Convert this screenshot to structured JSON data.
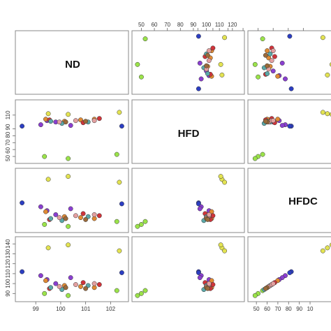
{
  "chart_data": {
    "type": "scatter",
    "variables": [
      "ND",
      "HFD",
      "HFDC"
    ],
    "axis_ticks": {
      "ND": [
        "99",
        "100",
        "101",
        "102"
      ],
      "HFD": [
        "50",
        "60",
        "70",
        "80",
        "90",
        "100",
        "110",
        "120"
      ],
      "HFD_left": [
        "50 60 70 80 90",
        "110"
      ],
      "HFDC_top": [
        "50",
        "60",
        "70",
        "80",
        "90",
        "100",
        "110",
        "120"
      ],
      "HFDC_left": [
        "90",
        "100",
        "110",
        "120",
        "130",
        "140"
      ],
      "HFDC_bottom": [
        "50",
        "60",
        "70",
        "80",
        "90",
        "10"
      ]
    },
    "ranges": {
      "ND": [
        98.35,
        102.55
      ],
      "HFD": [
        46,
        126
      ],
      "HFDC": [
        86,
        143
      ]
    },
    "colors": {
      "lime": "#9be34a",
      "yellow": "#e3e352",
      "blue": "#2c3ec2",
      "purple": "#8a3fd0",
      "orange": "#e08a34",
      "red": "#d0343a",
      "teal": "#5aa8a8",
      "pink": "#e3a0a0",
      "brown": "#9a6a3a"
    },
    "points": [
      {
        "ND": 99.35,
        "HFD": 50,
        "HFDC": 90,
        "color": "lime"
      },
      {
        "ND": 102.25,
        "HFD": 53,
        "HFDC": 93,
        "color": "lime"
      },
      {
        "ND": 100.3,
        "HFD": 47,
        "HFDC": 88,
        "color": "lime"
      },
      {
        "ND": 99.5,
        "HFD": 112,
        "HFDC": 136,
        "color": "yellow"
      },
      {
        "ND": 100.3,
        "HFD": 111,
        "HFDC": 139,
        "color": "yellow"
      },
      {
        "ND": 102.35,
        "HFD": 114,
        "HFDC": 133,
        "color": "yellow"
      },
      {
        "ND": 98.45,
        "HFD": 94,
        "HFDC": 112,
        "color": "blue"
      },
      {
        "ND": 102.45,
        "HFD": 94,
        "HFDC": 111,
        "color": "blue"
      },
      {
        "ND": 99.2,
        "HFD": 96,
        "HFDC": 108,
        "color": "purple"
      },
      {
        "ND": 100.4,
        "HFD": 95,
        "HFDC": 106,
        "color": "purple"
      },
      {
        "ND": 99.45,
        "HFD": 102,
        "HFDC": 104,
        "color": "purple"
      },
      {
        "ND": 99.8,
        "HFD": 100,
        "HFDC": 100,
        "color": "purple"
      },
      {
        "ND": 99.4,
        "HFD": 104,
        "HFDC": 103,
        "color": "orange"
      },
      {
        "ND": 100.15,
        "HFD": 101,
        "HFDC": 98,
        "color": "orange"
      },
      {
        "ND": 100.8,
        "HFD": 103,
        "HFDC": 97,
        "color": "orange"
      },
      {
        "ND": 101.35,
        "HFD": 104,
        "HFDC": 96,
        "color": "orange"
      },
      {
        "ND": 99.55,
        "HFD": 103,
        "HFDC": 95,
        "color": "red"
      },
      {
        "ND": 101.55,
        "HFD": 105,
        "HFDC": 99,
        "color": "red"
      },
      {
        "ND": 100.9,
        "HFD": 99,
        "HFDC": 101,
        "color": "red"
      },
      {
        "ND": 99.6,
        "HFD": 101,
        "HFDC": 96,
        "color": "teal"
      },
      {
        "ND": 100.05,
        "HFD": 98,
        "HFDC": 94,
        "color": "teal"
      },
      {
        "ND": 101.1,
        "HFD": 100,
        "HFDC": 98,
        "color": "teal"
      },
      {
        "ND": 99.95,
        "HFD": 100,
        "HFDC": 97,
        "color": "pink"
      },
      {
        "ND": 100.6,
        "HFD": 102,
        "HFDC": 99,
        "color": "pink"
      },
      {
        "ND": 101.35,
        "HFD": 102,
        "HFDC": 100,
        "color": "pink"
      },
      {
        "ND": 100.2,
        "HFD": 100,
        "HFDC": 96,
        "color": "brown"
      },
      {
        "ND": 101.0,
        "HFD": 101,
        "HFDC": 95,
        "color": "brown"
      }
    ]
  }
}
